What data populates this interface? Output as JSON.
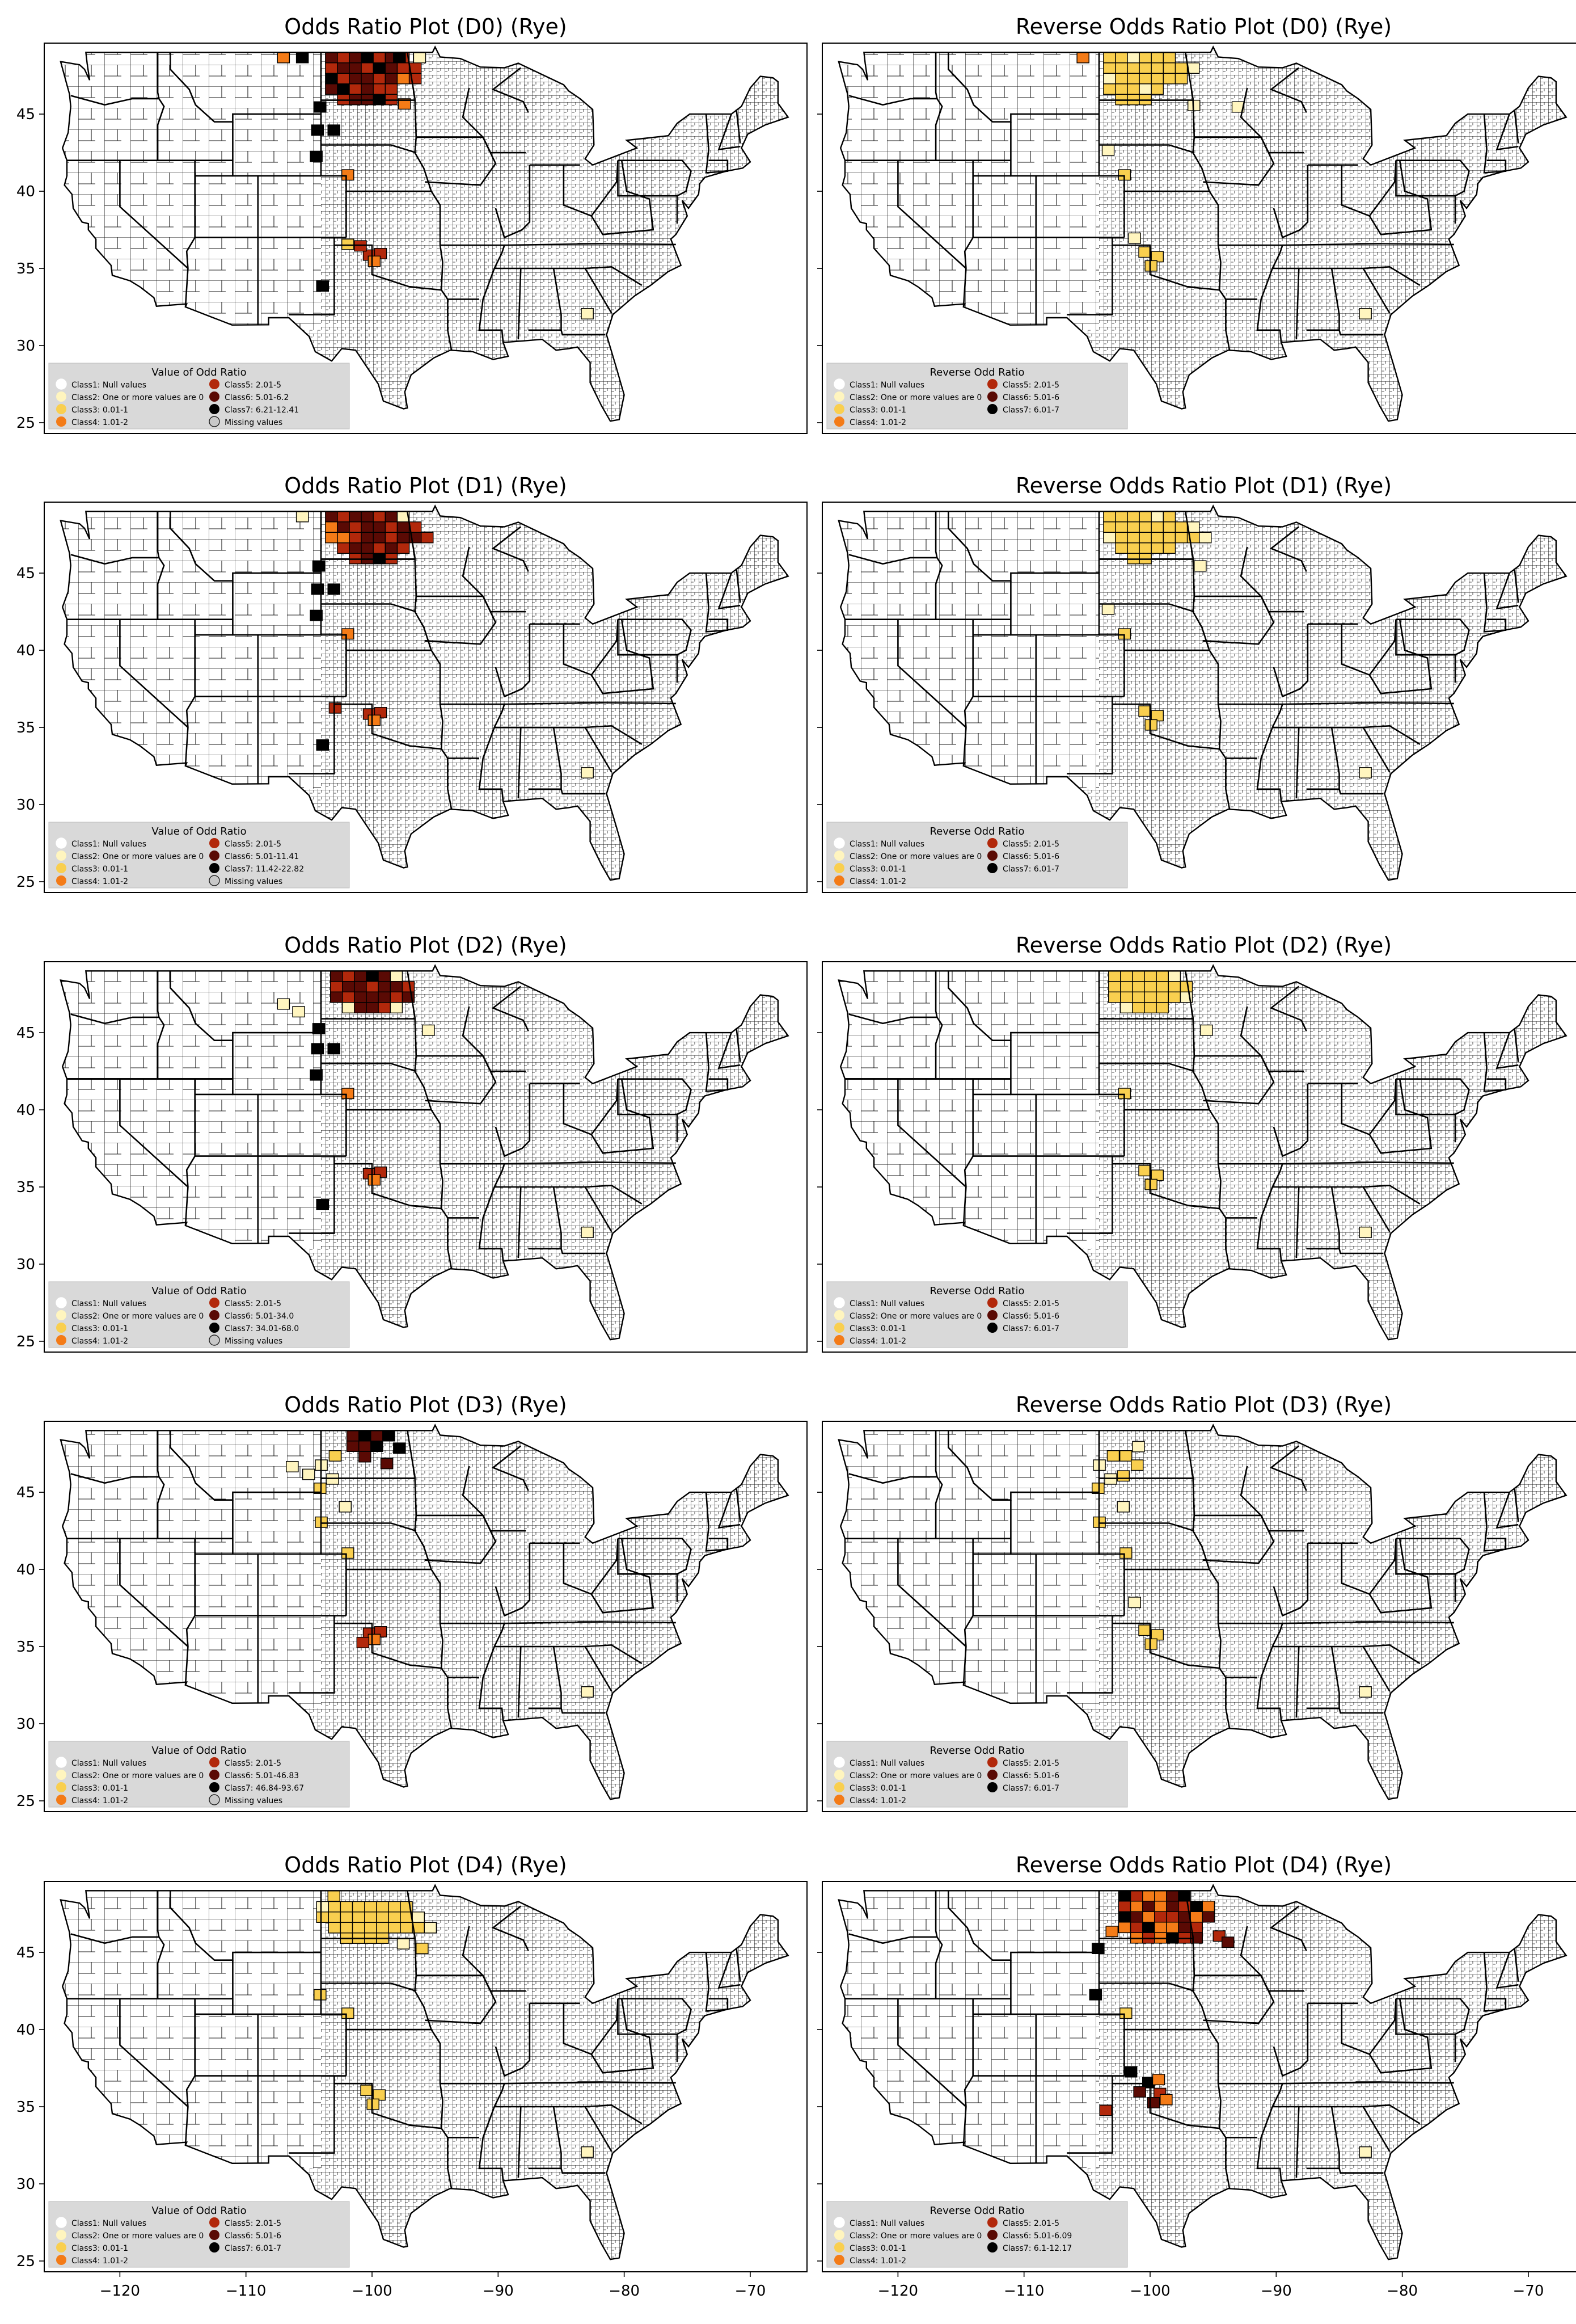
{
  "colors": {
    "class1": "#ffffff",
    "class2": "#fff5bf",
    "class3": "#f9cf4f",
    "class4": "#f47b17",
    "class5": "#b2280b",
    "class6": "#5a0a04",
    "class7": "#000000",
    "missing": "#c8c8c8",
    "legend_bg": "#d9d9d9",
    "county_stroke": "#1a1a1a",
    "state_stroke": "#000000"
  },
  "axes": {
    "x_ticks": [
      "−120",
      "−110",
      "−100",
      "−90",
      "−80",
      "−70"
    ],
    "y_ticks": [
      "25",
      "30",
      "35",
      "40",
      "45"
    ],
    "xlim": [
      -126,
      -65.5
    ],
    "ylim": [
      24.3,
      49.6
    ]
  },
  "panels": [
    {
      "title": "Odds Ratio Plot (D0) (Rye)",
      "legend_title": "Value of Odd Ratio",
      "legend_items": [
        {
          "label": "Class1: Null values",
          "cls": "class1"
        },
        {
          "label": "Class2: One or more values are 0",
          "cls": "class2"
        },
        {
          "label": "Class3: 0.01-1",
          "cls": "class3"
        },
        {
          "label": "Class4: 1.01-2",
          "cls": "class4"
        },
        {
          "label": "Class5: 2.01-5",
          "cls": "class5"
        },
        {
          "label": "Class6: 5.01-6.2",
          "cls": "class6"
        },
        {
          "label": "Class7: 6.21-12.41",
          "cls": "class7"
        },
        {
          "label": "Missing values",
          "cls": "missing"
        }
      ]
    },
    {
      "title": "Reverse Odds Ratio Plot (D0) (Rye)",
      "legend_title": "Reverse Odd Ratio",
      "legend_items": [
        {
          "label": "Class1: Null values",
          "cls": "class1"
        },
        {
          "label": "Class2: One or more values are 0",
          "cls": "class2"
        },
        {
          "label": "Class3: 0.01-1",
          "cls": "class3"
        },
        {
          "label": "Class4: 1.01-2",
          "cls": "class4"
        },
        {
          "label": "Class5: 2.01-5",
          "cls": "class5"
        },
        {
          "label": "Class6: 5.01-6",
          "cls": "class6"
        },
        {
          "label": "Class7: 6.01-7",
          "cls": "class7"
        }
      ]
    },
    {
      "title": "Odds Ratio Plot (D1) (Rye)",
      "legend_title": "Value of Odd Ratio",
      "legend_items": [
        {
          "label": "Class1: Null values",
          "cls": "class1"
        },
        {
          "label": "Class2: One or more values are 0",
          "cls": "class2"
        },
        {
          "label": "Class3: 0.01-1",
          "cls": "class3"
        },
        {
          "label": "Class4: 1.01-2",
          "cls": "class4"
        },
        {
          "label": "Class5: 2.01-5",
          "cls": "class5"
        },
        {
          "label": "Class6: 5.01-11.41",
          "cls": "class6"
        },
        {
          "label": "Class7: 11.42-22.82",
          "cls": "class7"
        },
        {
          "label": "Missing values",
          "cls": "missing"
        }
      ]
    },
    {
      "title": "Reverse Odds Ratio Plot (D1) (Rye)",
      "legend_title": "Reverse Odd Ratio",
      "legend_items": [
        {
          "label": "Class1: Null values",
          "cls": "class1"
        },
        {
          "label": "Class2: One or more values are 0",
          "cls": "class2"
        },
        {
          "label": "Class3: 0.01-1",
          "cls": "class3"
        },
        {
          "label": "Class4: 1.01-2",
          "cls": "class4"
        },
        {
          "label": "Class5: 2.01-5",
          "cls": "class5"
        },
        {
          "label": "Class6: 5.01-6",
          "cls": "class6"
        },
        {
          "label": "Class7: 6.01-7",
          "cls": "class7"
        }
      ]
    },
    {
      "title": "Odds Ratio Plot (D2) (Rye)",
      "legend_title": "Value of Odd Ratio",
      "legend_items": [
        {
          "label": "Class1: Null values",
          "cls": "class1"
        },
        {
          "label": "Class2: One or more values are 0",
          "cls": "class2"
        },
        {
          "label": "Class3: 0.01-1",
          "cls": "class3"
        },
        {
          "label": "Class4: 1.01-2",
          "cls": "class4"
        },
        {
          "label": "Class5: 2.01-5",
          "cls": "class5"
        },
        {
          "label": "Class6: 5.01-34.0",
          "cls": "class6"
        },
        {
          "label": "Class7: 34.01-68.0",
          "cls": "class7"
        },
        {
          "label": "Missing values",
          "cls": "missing"
        }
      ]
    },
    {
      "title": "Reverse Odds Ratio Plot (D2) (Rye)",
      "legend_title": "Reverse Odd Ratio",
      "legend_items": [
        {
          "label": "Class1: Null values",
          "cls": "class1"
        },
        {
          "label": "Class2: One or more values are 0",
          "cls": "class2"
        },
        {
          "label": "Class3: 0.01-1",
          "cls": "class3"
        },
        {
          "label": "Class4: 1.01-2",
          "cls": "class4"
        },
        {
          "label": "Class5: 2.01-5",
          "cls": "class5"
        },
        {
          "label": "Class6: 5.01-6",
          "cls": "class6"
        },
        {
          "label": "Class7: 6.01-7",
          "cls": "class7"
        }
      ]
    },
    {
      "title": "Odds Ratio Plot (D3) (Rye)",
      "legend_title": "Value of Odd Ratio",
      "legend_items": [
        {
          "label": "Class1: Null values",
          "cls": "class1"
        },
        {
          "label": "Class2: One or more values are 0",
          "cls": "class2"
        },
        {
          "label": "Class3: 0.01-1",
          "cls": "class3"
        },
        {
          "label": "Class4: 1.01-2",
          "cls": "class4"
        },
        {
          "label": "Class5: 2.01-5",
          "cls": "class5"
        },
        {
          "label": "Class6: 5.01-46.83",
          "cls": "class6"
        },
        {
          "label": "Class7: 46.84-93.67",
          "cls": "class7"
        },
        {
          "label": "Missing values",
          "cls": "missing"
        }
      ]
    },
    {
      "title": "Reverse Odds Ratio Plot (D3) (Rye)",
      "legend_title": "Reverse Odd Ratio",
      "legend_items": [
        {
          "label": "Class1: Null values",
          "cls": "class1"
        },
        {
          "label": "Class2: One or more values are 0",
          "cls": "class2"
        },
        {
          "label": "Class3: 0.01-1",
          "cls": "class3"
        },
        {
          "label": "Class4: 1.01-2",
          "cls": "class4"
        },
        {
          "label": "Class5: 2.01-5",
          "cls": "class5"
        },
        {
          "label": "Class6: 5.01-6",
          "cls": "class6"
        },
        {
          "label": "Class7: 6.01-7",
          "cls": "class7"
        }
      ]
    },
    {
      "title": "Odds Ratio Plot (D4) (Rye)",
      "legend_title": "Value of Odd Ratio",
      "legend_items": [
        {
          "label": "Class1: Null values",
          "cls": "class1"
        },
        {
          "label": "Class2: One or more values are 0",
          "cls": "class2"
        },
        {
          "label": "Class3: 0.01-1",
          "cls": "class3"
        },
        {
          "label": "Class4: 1.01-2",
          "cls": "class4"
        },
        {
          "label": "Class5: 2.01-5",
          "cls": "class5"
        },
        {
          "label": "Class6: 5.01-6",
          "cls": "class6"
        },
        {
          "label": "Class7: 6.01-7",
          "cls": "class7"
        }
      ]
    },
    {
      "title": "Reverse Odds Ratio Plot (D4) (Rye)",
      "legend_title": "Reverse Odd Ratio",
      "legend_items": [
        {
          "label": "Class1: Null values",
          "cls": "class1"
        },
        {
          "label": "Class2: One or more values are 0",
          "cls": "class2"
        },
        {
          "label": "Class3: 0.01-1",
          "cls": "class3"
        },
        {
          "label": "Class4: 1.01-2",
          "cls": "class4"
        },
        {
          "label": "Class5: 2.01-5",
          "cls": "class5"
        },
        {
          "label": "Class6: 5.01-6.09",
          "cls": "class6"
        },
        {
          "label": "Class7: 6.1-12.17",
          "cls": "class7"
        }
      ]
    }
  ]
}
